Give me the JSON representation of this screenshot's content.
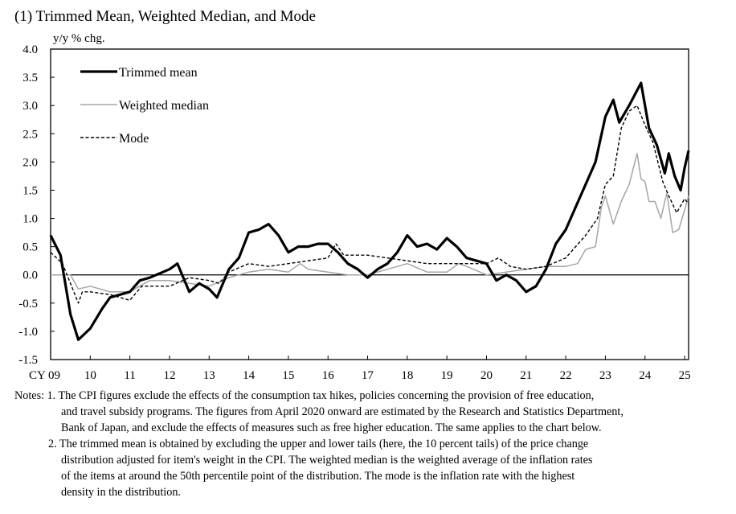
{
  "title": "(1) Trimmed Mean, Weighted Median, and Mode",
  "notes": {
    "lines": [
      "Notes: 1. The CPI figures exclude the effects of the consumption tax hikes, policies concerning the provision of free education,",
      "and travel subsidy programs. The figures from April 2020 onward are estimated by the Research and Statistics Department,",
      "Bank of Japan, and exclude the effects of measures such as free higher education. The same applies to the chart below.",
      "2. The trimmed mean is obtained by excluding the upper and lower tails (here, the 10 percent tails) of the price change",
      "distribution adjusted for item's weight in the CPI. The weighted median is the weighted average of the inflation rates",
      "of the items at around the 50th percentile point of the distribution. The mode is the inflation rate with the highest",
      "density in the distribution."
    ]
  },
  "chart_data": {
    "type": "line",
    "ylabel": "y/y % chg.",
    "ylim": [
      -1.5,
      4.0
    ],
    "yticks": [
      "4.0",
      "3.5",
      "3.0",
      "2.5",
      "2.0",
      "1.5",
      "1.0",
      "0.5",
      "0.0",
      "-0.5",
      "-1.0",
      "-1.5"
    ],
    "xlim": [
      2009,
      2025.1
    ],
    "xticks": [
      "CY 09",
      "10",
      "11",
      "12",
      "13",
      "14",
      "15",
      "16",
      "17",
      "18",
      "19",
      "20",
      "21",
      "22",
      "23",
      "24",
      "25"
    ],
    "grid": false,
    "legend_position": "top-left",
    "series": [
      {
        "name": "Trimmed mean",
        "color": "#000000",
        "style": "solid-thick",
        "points": [
          [
            2009,
            0.7
          ],
          [
            2009.25,
            0.35
          ],
          [
            2009.5,
            -0.7
          ],
          [
            2009.7,
            -1.15
          ],
          [
            2010,
            -0.95
          ],
          [
            2010.3,
            -0.6
          ],
          [
            2010.5,
            -0.4
          ],
          [
            2011,
            -0.3
          ],
          [
            2011.25,
            -0.1
          ],
          [
            2011.5,
            -0.05
          ],
          [
            2012,
            0.1
          ],
          [
            2012.2,
            0.2
          ],
          [
            2012.5,
            -0.3
          ],
          [
            2012.75,
            -0.15
          ],
          [
            2013,
            -0.25
          ],
          [
            2013.2,
            -0.4
          ],
          [
            2013.5,
            0.1
          ],
          [
            2013.75,
            0.3
          ],
          [
            2014,
            0.75
          ],
          [
            2014.25,
            0.8
          ],
          [
            2014.5,
            0.9
          ],
          [
            2014.75,
            0.7
          ],
          [
            2015,
            0.4
          ],
          [
            2015.25,
            0.5
          ],
          [
            2015.5,
            0.5
          ],
          [
            2015.75,
            0.55
          ],
          [
            2016,
            0.55
          ],
          [
            2016.25,
            0.4
          ],
          [
            2016.5,
            0.2
          ],
          [
            2016.75,
            0.1
          ],
          [
            2017,
            -0.05
          ],
          [
            2017.25,
            0.1
          ],
          [
            2017.5,
            0.2
          ],
          [
            2017.75,
            0.4
          ],
          [
            2018,
            0.7
          ],
          [
            2018.25,
            0.5
          ],
          [
            2018.5,
            0.55
          ],
          [
            2018.75,
            0.45
          ],
          [
            2019,
            0.65
          ],
          [
            2019.25,
            0.5
          ],
          [
            2019.5,
            0.3
          ],
          [
            2019.75,
            0.25
          ],
          [
            2020,
            0.2
          ],
          [
            2020.25,
            -0.1
          ],
          [
            2020.5,
            0.0
          ],
          [
            2020.75,
            -0.1
          ],
          [
            2021,
            -0.3
          ],
          [
            2021.25,
            -0.2
          ],
          [
            2021.5,
            0.1
          ],
          [
            2021.75,
            0.55
          ],
          [
            2022,
            0.8
          ],
          [
            2022.25,
            1.2
          ],
          [
            2022.5,
            1.6
          ],
          [
            2022.75,
            2.0
          ],
          [
            2023,
            2.8
          ],
          [
            2023.2,
            3.1
          ],
          [
            2023.35,
            2.7
          ],
          [
            2023.6,
            3.0
          ],
          [
            2023.75,
            3.2
          ],
          [
            2023.9,
            3.4
          ],
          [
            2024.1,
            2.6
          ],
          [
            2024.3,
            2.3
          ],
          [
            2024.5,
            1.8
          ],
          [
            2024.6,
            2.15
          ],
          [
            2024.75,
            1.75
          ],
          [
            2024.9,
            1.5
          ],
          [
            2025.0,
            1.9
          ],
          [
            2025.1,
            2.2
          ]
        ]
      },
      {
        "name": "Weighted median",
        "color": "#a6a6a6",
        "style": "solid-thin",
        "points": [
          [
            2009,
            0.0
          ],
          [
            2009.5,
            0.0
          ],
          [
            2009.7,
            -0.25
          ],
          [
            2010,
            -0.2
          ],
          [
            2010.5,
            -0.3
          ],
          [
            2011,
            -0.3
          ],
          [
            2011.5,
            -0.1
          ],
          [
            2012,
            -0.1
          ],
          [
            2012.5,
            -0.15
          ],
          [
            2013,
            -0.2
          ],
          [
            2013.5,
            -0.05
          ],
          [
            2014,
            0.05
          ],
          [
            2014.5,
            0.1
          ],
          [
            2015,
            0.05
          ],
          [
            2015.3,
            0.2
          ],
          [
            2015.5,
            0.1
          ],
          [
            2016,
            0.05
          ],
          [
            2016.5,
            0.0
          ],
          [
            2017,
            0.0
          ],
          [
            2017.5,
            0.1
          ],
          [
            2018,
            0.2
          ],
          [
            2018.5,
            0.05
          ],
          [
            2019,
            0.05
          ],
          [
            2019.3,
            0.2
          ],
          [
            2019.5,
            0.15
          ],
          [
            2020,
            0.0
          ],
          [
            2020.5,
            0.05
          ],
          [
            2021,
            0.1
          ],
          [
            2021.5,
            0.15
          ],
          [
            2022,
            0.15
          ],
          [
            2022.3,
            0.2
          ],
          [
            2022.5,
            0.45
          ],
          [
            2022.75,
            0.5
          ],
          [
            2022.9,
            1.2
          ],
          [
            2023,
            1.4
          ],
          [
            2023.2,
            0.9
          ],
          [
            2023.4,
            1.3
          ],
          [
            2023.6,
            1.6
          ],
          [
            2023.8,
            2.15
          ],
          [
            2023.9,
            1.7
          ],
          [
            2024,
            1.65
          ],
          [
            2024.1,
            1.3
          ],
          [
            2024.25,
            1.3
          ],
          [
            2024.4,
            1.0
          ],
          [
            2024.55,
            1.45
          ],
          [
            2024.7,
            0.75
          ],
          [
            2024.85,
            0.8
          ],
          [
            2025.0,
            1.15
          ],
          [
            2025.1,
            1.4
          ]
        ]
      },
      {
        "name": "Mode",
        "color": "#000000",
        "style": "dashed",
        "points": [
          [
            2009,
            0.4
          ],
          [
            2009.3,
            0.2
          ],
          [
            2009.5,
            -0.15
          ],
          [
            2009.7,
            -0.5
          ],
          [
            2009.8,
            -0.3
          ],
          [
            2010,
            -0.3
          ],
          [
            2010.5,
            -0.35
          ],
          [
            2011,
            -0.45
          ],
          [
            2011.3,
            -0.2
          ],
          [
            2011.6,
            -0.2
          ],
          [
            2012,
            -0.2
          ],
          [
            2012.5,
            -0.05
          ],
          [
            2013,
            -0.1
          ],
          [
            2013.25,
            -0.15
          ],
          [
            2013.5,
            0.05
          ],
          [
            2014,
            0.2
          ],
          [
            2014.5,
            0.15
          ],
          [
            2015,
            0.2
          ],
          [
            2015.5,
            0.25
          ],
          [
            2016,
            0.3
          ],
          [
            2016.2,
            0.55
          ],
          [
            2016.4,
            0.35
          ],
          [
            2017,
            0.35
          ],
          [
            2017.5,
            0.3
          ],
          [
            2018,
            0.25
          ],
          [
            2018.5,
            0.2
          ],
          [
            2019,
            0.2
          ],
          [
            2019.5,
            0.2
          ],
          [
            2020,
            0.2
          ],
          [
            2020.3,
            0.3
          ],
          [
            2020.6,
            0.15
          ],
          [
            2021,
            0.1
          ],
          [
            2021.5,
            0.15
          ],
          [
            2022,
            0.3
          ],
          [
            2022.5,
            0.7
          ],
          [
            2022.8,
            1.0
          ],
          [
            2023,
            1.6
          ],
          [
            2023.2,
            1.75
          ],
          [
            2023.4,
            2.6
          ],
          [
            2023.6,
            2.9
          ],
          [
            2023.8,
            3.0
          ],
          [
            2024,
            2.65
          ],
          [
            2024.2,
            2.35
          ],
          [
            2024.45,
            1.65
          ],
          [
            2024.6,
            1.4
          ],
          [
            2024.8,
            1.1
          ],
          [
            2025.0,
            1.35
          ],
          [
            2025.1,
            1.25
          ]
        ]
      }
    ]
  }
}
